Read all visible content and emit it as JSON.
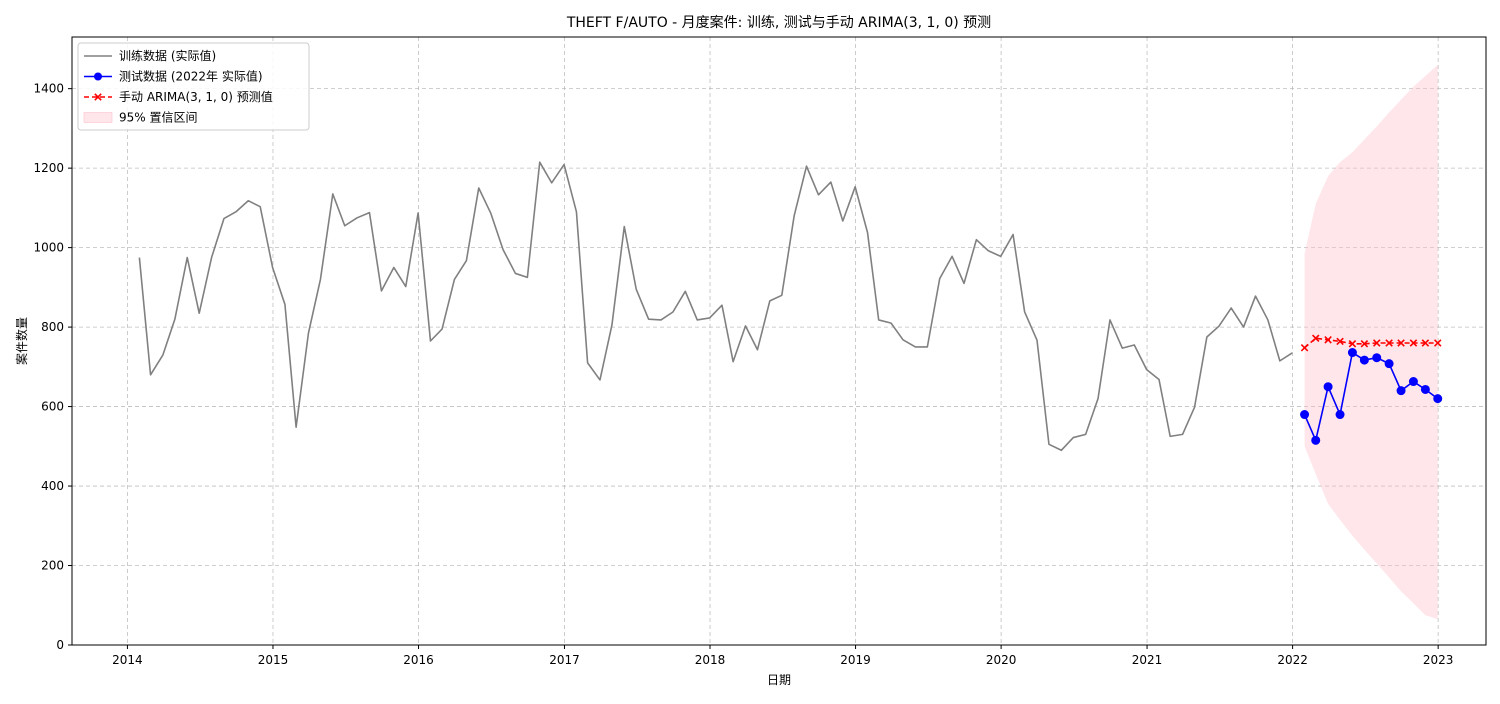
{
  "chart_data": {
    "type": "line",
    "title": "THEFT F/AUTO - 月度案件: 训练, 测试与手动 ARIMA(3, 1, 0) 预测",
    "xlabel": "日期",
    "ylabel": "案件数量",
    "x_axis_type": "date",
    "xlim": [
      "2013-08-15",
      "2023-05-01"
    ],
    "ylim": [
      0,
      1530
    ],
    "x_ticks": [
      "2014",
      "2015",
      "2016",
      "2017",
      "2018",
      "2019",
      "2020",
      "2021",
      "2022",
      "2023"
    ],
    "y_ticks": [
      0,
      200,
      400,
      600,
      800,
      1000,
      1200,
      1400
    ],
    "grid": true,
    "legend_position": "top-left",
    "series": [
      {
        "name": "训练数据 (实际值)",
        "kind": "line",
        "color": "#808080",
        "x": [
          "2014-01-31",
          "2014-02-28",
          "2014-03-31",
          "2014-04-30",
          "2014-05-31",
          "2014-06-30",
          "2014-07-31",
          "2014-08-31",
          "2014-09-30",
          "2014-10-31",
          "2014-11-30",
          "2014-12-31",
          "2015-01-31",
          "2015-02-28",
          "2015-03-31",
          "2015-04-30",
          "2015-05-31",
          "2015-06-30",
          "2015-07-31",
          "2015-08-31",
          "2015-09-30",
          "2015-10-31",
          "2015-11-30",
          "2015-12-31",
          "2016-01-31",
          "2016-02-29",
          "2016-03-31",
          "2016-04-30",
          "2016-05-31",
          "2016-06-30",
          "2016-07-31",
          "2016-08-31",
          "2016-09-30",
          "2016-10-31",
          "2016-11-30",
          "2016-12-31",
          "2017-01-31",
          "2017-02-28",
          "2017-03-31",
          "2017-04-30",
          "2017-05-31",
          "2017-06-30",
          "2017-07-31",
          "2017-08-31",
          "2017-09-30",
          "2017-10-31",
          "2017-11-30",
          "2017-12-31",
          "2018-01-31",
          "2018-02-28",
          "2018-03-31",
          "2018-04-30",
          "2018-05-31",
          "2018-06-30",
          "2018-07-31",
          "2018-08-31",
          "2018-09-30",
          "2018-10-31",
          "2018-11-30",
          "2018-12-31",
          "2019-01-31",
          "2019-02-28",
          "2019-03-31",
          "2019-04-30",
          "2019-05-31",
          "2019-06-30",
          "2019-07-31",
          "2019-08-31",
          "2019-09-30",
          "2019-10-31",
          "2019-11-30",
          "2019-12-31",
          "2020-01-31",
          "2020-02-29",
          "2020-03-31",
          "2020-04-30",
          "2020-05-31",
          "2020-06-30",
          "2020-07-31",
          "2020-08-31",
          "2020-09-30",
          "2020-10-31",
          "2020-11-30",
          "2020-12-31",
          "2021-01-31",
          "2021-02-28",
          "2021-03-31",
          "2021-04-30",
          "2021-05-31",
          "2021-06-30",
          "2021-07-31",
          "2021-08-31",
          "2021-09-30",
          "2021-10-31",
          "2021-11-30",
          "2021-12-31"
        ],
        "y": [
          975,
          680,
          730,
          820,
          975,
          835,
          975,
          1073,
          1090,
          1118,
          1103,
          950,
          857,
          548,
          785,
          920,
          1135,
          1055,
          1075,
          1088,
          891,
          950,
          902,
          1087,
          765,
          795,
          920,
          967,
          1150,
          1087,
          995,
          935,
          925,
          1215,
          1163,
          1209,
          1090,
          710,
          667,
          805,
          1053,
          895,
          820,
          818,
          838,
          890,
          818,
          823,
          855,
          713,
          803,
          743,
          866,
          880,
          1080,
          1205,
          1133,
          1165,
          1067,
          1153,
          1038,
          818,
          810,
          768,
          750,
          750,
          922,
          978,
          910,
          1020,
          992,
          978,
          1033,
          838,
          767,
          505,
          490,
          522,
          530,
          620,
          818,
          747,
          755,
          693,
          668,
          525,
          530,
          598,
          775,
          802,
          848,
          800,
          878,
          818,
          715,
          735
        ]
      },
      {
        "name": "测试数据 (2022年 实际值)",
        "kind": "line-marker-circle",
        "color": "#0000ff",
        "x": [
          "2022-01-31",
          "2022-02-28",
          "2022-03-31",
          "2022-04-30",
          "2022-05-31",
          "2022-06-30",
          "2022-07-31",
          "2022-08-31",
          "2022-09-30",
          "2022-10-31",
          "2022-11-30",
          "2022-12-31"
        ],
        "y": [
          580,
          515,
          650,
          580,
          736,
          717,
          723,
          708,
          640,
          663,
          643,
          620
        ]
      },
      {
        "name": "手动 ARIMA(3, 1, 0) 预测值",
        "kind": "dashed-marker-x",
        "color": "#ff0000",
        "x": [
          "2022-01-31",
          "2022-02-28",
          "2022-03-31",
          "2022-04-30",
          "2022-05-31",
          "2022-06-30",
          "2022-07-31",
          "2022-08-31",
          "2022-09-30",
          "2022-10-31",
          "2022-11-30",
          "2022-12-31"
        ],
        "y": [
          748,
          772,
          768,
          764,
          758,
          758,
          760,
          760,
          760,
          760,
          760,
          760
        ]
      },
      {
        "name": "95% 置信区间",
        "kind": "band",
        "color": "#ffc0cb",
        "x": [
          "2022-01-31",
          "2022-02-28",
          "2022-03-31",
          "2022-04-30",
          "2022-05-31",
          "2022-06-30",
          "2022-07-31",
          "2022-08-31",
          "2022-09-30",
          "2022-10-31",
          "2022-11-30",
          "2022-12-31"
        ],
        "lower": [
          500,
          430,
          355,
          315,
          275,
          240,
          205,
          170,
          135,
          105,
          75,
          65
        ],
        "upper": [
          985,
          1110,
          1180,
          1215,
          1240,
          1272,
          1305,
          1340,
          1372,
          1405,
          1432,
          1460
        ]
      }
    ]
  }
}
